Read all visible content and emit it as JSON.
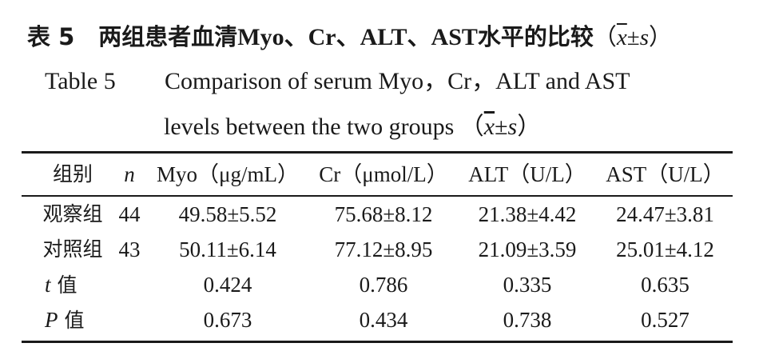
{
  "caption": {
    "cn_label": "表 5",
    "cn_title": "两组患者血清",
    "cn_analytes": "Myo、Cr、ALT、AST",
    "cn_title_tail": "水平的比较",
    "en_label": "Table 5",
    "en_line1": "Comparison of serum Myo，Cr，ALT and AST",
    "en_line2": "levels between the two groups",
    "stat_open": "（",
    "stat_mean": "x",
    "stat_pm": "±",
    "stat_sd": "s",
    "stat_close": "）"
  },
  "table": {
    "headers": {
      "group": "组别",
      "n": "n",
      "myo": "Myo（μg/mL）",
      "cr": "Cr（μmol/L）",
      "alt": "ALT（U/L）",
      "ast": "AST（U/L）"
    },
    "rows": [
      {
        "group": "观察组",
        "n": "44",
        "myo": "49.58±5.52",
        "cr": "75.68±8.12",
        "alt": "21.38±4.42",
        "ast": "24.47±3.81"
      },
      {
        "group": "对照组",
        "n": "43",
        "myo": "50.11±6.14",
        "cr": "77.12±8.95",
        "alt": "21.09±3.59",
        "ast": "25.01±4.12"
      }
    ],
    "stats": [
      {
        "symbol": "t",
        "suffix": " 值",
        "myo": "0.424",
        "cr": "0.786",
        "alt": "0.335",
        "ast": "0.635"
      },
      {
        "symbol": "P",
        "suffix": " 值",
        "myo": "0.673",
        "cr": "0.434",
        "alt": "0.738",
        "ast": "0.527"
      }
    ]
  }
}
